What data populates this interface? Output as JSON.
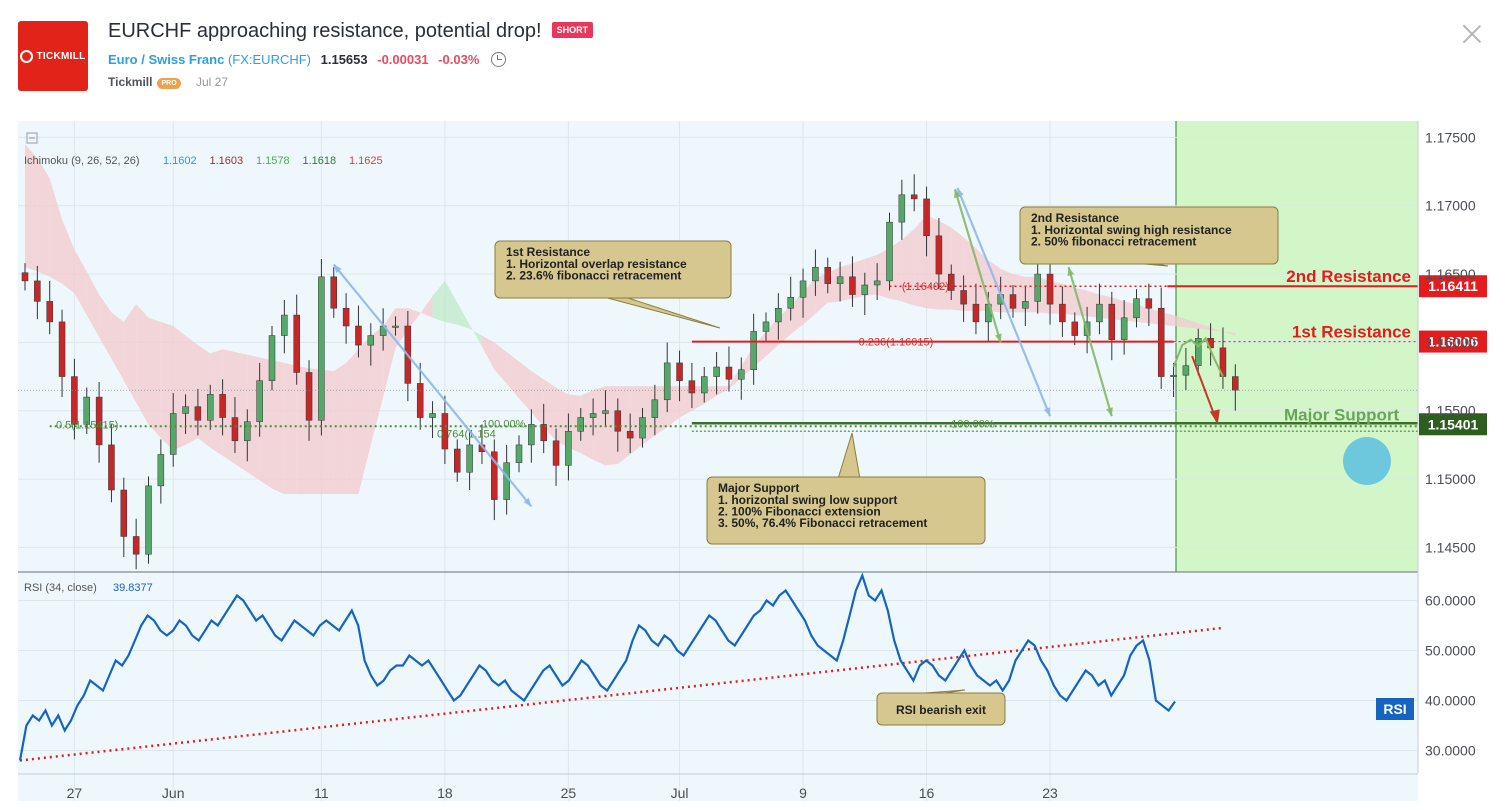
{
  "header": {
    "title": "EURCHF approaching resistance, potential drop!",
    "badge": "SHORT",
    "logo_text": "TICKMILL",
    "symbol_name": "Euro / Swiss Franc",
    "symbol_code": "(FX:EURCHF)",
    "price": "1.15653",
    "change": "-0.00031",
    "change_pct": "-0.03%",
    "author": "Tickmill",
    "author_badge": "PRO",
    "date": "Jul 27"
  },
  "colors": {
    "background": "#eef8fc",
    "candle_up": "#55a868",
    "candle_down": "#c62828",
    "resistance": "#e31d1d",
    "support": "#4f8b3b",
    "rsi_line": "#1565c0",
    "zone": "#c9f5b8",
    "callout": "#d6c78f"
  },
  "chart_data": [
    {
      "type": "candlestick",
      "title": "",
      "indicator_label": "Ichimoku (9, 26, 52, 26)",
      "indicator_values": [
        "1.1602",
        "1.1603",
        "1.1578",
        "1.1618",
        "1.1625"
      ],
      "indicator_colors": [
        "#2196f3",
        "#a52a2a",
        "#4caf50",
        "#2e7d32",
        "#e53935"
      ],
      "x_ticks": [
        {
          "i": 4,
          "label": "27"
        },
        {
          "i": 12,
          "label": "Jun"
        },
        {
          "i": 24,
          "label": "11"
        },
        {
          "i": 34,
          "label": "18"
        },
        {
          "i": 44,
          "label": "25"
        },
        {
          "i": 53,
          "label": "Jul"
        },
        {
          "i": 63,
          "label": "9"
        },
        {
          "i": 73,
          "label": "16"
        },
        {
          "i": 83,
          "label": "23"
        }
      ],
      "y_ticks": [
        1.145,
        1.15,
        1.155,
        1.16,
        1.165,
        1.17,
        1.175
      ],
      "y_tick_labels": [
        "1.14500",
        "1.15000",
        "1.15500",
        "1.16000",
        "1.16500",
        "1.17000",
        "1.17500"
      ],
      "ylim": [
        1.1432,
        1.1762
      ],
      "closes": [
        1.1645,
        1.163,
        1.1615,
        1.1575,
        1.154,
        1.156,
        1.1525,
        1.1492,
        1.1458,
        1.1445,
        1.1495,
        1.1518,
        1.1548,
        1.1553,
        1.1543,
        1.1562,
        1.1545,
        1.1528,
        1.1542,
        1.1572,
        1.1605,
        1.162,
        1.1578,
        1.1543,
        1.1648,
        1.1625,
        1.1612,
        1.1598,
        1.1605,
        1.1612,
        1.1612,
        1.157,
        1.1545,
        1.1548,
        1.1522,
        1.1505,
        1.1525,
        1.152,
        1.1485,
        1.1512,
        1.1525,
        1.154,
        1.1528,
        1.151,
        1.1535,
        1.1545,
        1.1548,
        1.155,
        1.1535,
        1.153,
        1.1545,
        1.1558,
        1.1585,
        1.1572,
        1.1563,
        1.1575,
        1.1582,
        1.1573,
        1.158,
        1.1608,
        1.1615,
        1.1625,
        1.1633,
        1.1645,
        1.1655,
        1.1643,
        1.1648,
        1.1635,
        1.1642,
        1.1645,
        1.1688,
        1.1708,
        1.1705,
        1.1678,
        1.165,
        1.1638,
        1.1628,
        1.1615,
        1.1628,
        1.1635,
        1.1625,
        1.163,
        1.165,
        1.1628,
        1.1615,
        1.1605,
        1.1615,
        1.1628,
        1.1602,
        1.1618,
        1.1632,
        1.1625,
        1.1575,
        1.1576,
        1.1583,
        1.1603,
        1.1596,
        1.1575,
        1.1565
      ],
      "cloud_upper": [
        1.1745,
        1.1735,
        1.172,
        1.169,
        1.1668,
        1.1652,
        1.1635,
        1.1622,
        1.1615,
        1.1628,
        1.1618,
        1.1615,
        1.1612,
        1.1605,
        1.1598,
        1.1592,
        1.1595,
        1.1593,
        1.1591,
        1.1589,
        1.1587,
        1.1585,
        1.1583,
        1.1581,
        1.158,
        1.1579,
        1.1585,
        1.1595,
        1.1605,
        1.1612,
        1.1625,
        1.1625,
        1.1622,
        1.1618,
        1.1615,
        1.1613,
        1.161,
        1.1605,
        1.16,
        1.1593,
        1.1586,
        1.1579,
        1.1573,
        1.1567,
        1.1562,
        1.1561,
        1.1565,
        1.1568,
        1.1568,
        1.1568,
        1.1568,
        1.1568,
        1.1568,
        1.1568,
        1.1568,
        1.1568,
        1.1568,
        1.1568,
        1.1583,
        1.1597,
        1.1608,
        1.1618,
        1.1627,
        1.1637,
        1.1647,
        1.1651,
        1.1655,
        1.1658,
        1.1661,
        1.1664,
        1.1669,
        1.1675,
        1.1683,
        1.1693,
        1.1689,
        1.1684,
        1.1677,
        1.1669,
        1.166,
        1.1654,
        1.165,
        1.1648,
        1.1648,
        1.1645,
        1.1643,
        1.164,
        1.1638,
        1.1635,
        1.1633,
        1.163,
        1.1628,
        1.1625,
        1.1622,
        1.162,
        1.1617,
        1.1614,
        1.1611,
        1.1608,
        1.1605
      ],
      "cloud_lower": [
        1.1655,
        1.1652,
        1.1648,
        1.1643,
        1.1636,
        1.162,
        1.1604,
        1.1588,
        1.1572,
        1.1556,
        1.154,
        1.153,
        1.1521,
        1.1525,
        1.153,
        1.1523,
        1.1517,
        1.1511,
        1.1505,
        1.1499,
        1.1493,
        1.1489,
        1.1489,
        1.1489,
        1.1489,
        1.1489,
        1.1489,
        1.1489,
        1.1525,
        1.156,
        1.1596,
        1.1609,
        1.1621,
        1.1634,
        1.1645,
        1.1629,
        1.1613,
        1.1597,
        1.158,
        1.157,
        1.1559,
        1.1549,
        1.1538,
        1.1528,
        1.1523,
        1.1519,
        1.1514,
        1.151,
        1.1511,
        1.1518,
        1.1525,
        1.1532,
        1.1538,
        1.1545,
        1.155,
        1.1555,
        1.1561,
        1.1566,
        1.1574,
        1.1582,
        1.159,
        1.1598,
        1.1606,
        1.1613,
        1.1621,
        1.1629,
        1.163,
        1.1632,
        1.1634,
        1.1635,
        1.1632,
        1.163,
        1.1627,
        1.1625,
        1.1624,
        1.1624,
        1.1623,
        1.1623,
        1.1623,
        1.1622,
        1.1622,
        1.1622,
        1.1622,
        1.1621,
        1.1621,
        1.162,
        1.1619,
        1.1618,
        1.1617,
        1.1616,
        1.1615,
        1.1614,
        1.1613,
        1.1612,
        1.1611,
        1.161,
        1.1609,
        1.1608,
        1.1607
      ],
      "levels": [
        {
          "name": "2nd Resistance",
          "value": 1.16411,
          "label": "1.16411",
          "color": "#e31d1d"
        },
        {
          "name": "1st Resistance",
          "value": 1.16006,
          "label": "1.16006",
          "color": "#e31d1d"
        },
        {
          "name": "Major Support",
          "value": 1.15401,
          "label": "1.15401",
          "color": "#3d7a2a"
        }
      ],
      "fib_labels": [
        "(1.16402)",
        "0.236(1.16015)",
        "100.00%",
        "0.5(1.15415)",
        "0.764(1.154",
        "100.00%"
      ],
      "annotations": [
        {
          "title": "1st Resistance",
          "lines": [
            "1. Horizontal overlap resistance",
            "2. 23.6% fibonacci retracement"
          ]
        },
        {
          "title": "2nd Resistance",
          "lines": [
            "1. Horizontal swing high resistance",
            "2. 50% fibonacci retracement"
          ]
        },
        {
          "title": "Major Support",
          "lines": [
            "1. horizontal swing low support",
            "2. 100% Fibonacci extension",
            "3. 50%, 76.4% Fibonacci retracement"
          ]
        }
      ]
    },
    {
      "type": "line",
      "title": "",
      "indicator_label": "RSI (34, close)",
      "value_label": "39.8377",
      "badge": "RSI",
      "y_ticks": [
        30,
        40,
        50,
        60
      ],
      "y_tick_labels": [
        "30.0000",
        "40.0000",
        "50.0000",
        "60.0000"
      ],
      "ylim": [
        25.5,
        65.5
      ],
      "values": [
        28,
        35,
        37,
        36,
        38,
        35,
        37,
        34,
        36,
        39,
        41,
        44,
        43,
        42,
        45,
        48,
        47,
        49,
        52,
        55,
        57,
        56,
        54,
        53,
        54,
        56,
        55,
        53,
        52,
        54,
        56,
        55,
        57,
        59,
        61,
        60,
        58,
        56,
        57,
        55,
        53,
        52,
        54,
        56,
        55,
        54,
        53,
        55,
        56,
        55,
        54,
        56,
        58,
        55,
        48,
        45,
        43,
        44,
        46,
        47,
        47,
        49,
        48,
        47,
        48,
        46,
        44,
        42,
        40,
        41,
        43,
        45,
        47,
        46,
        44,
        43,
        44,
        42,
        41,
        40,
        42,
        44,
        46,
        47,
        45,
        43,
        44,
        46,
        48,
        47,
        45,
        43,
        42,
        44,
        46,
        48,
        52,
        55,
        54,
        52,
        51,
        53,
        52,
        50,
        49,
        51,
        53,
        55,
        57,
        56,
        54,
        52,
        51,
        53,
        55,
        57,
        58,
        60,
        59,
        61,
        62,
        60,
        58,
        56,
        53,
        51,
        50,
        49,
        48,
        52,
        57,
        62,
        65,
        61,
        60,
        62,
        58,
        52,
        48,
        46,
        44,
        47,
        48,
        47,
        45,
        44,
        46,
        48,
        50,
        47,
        45,
        44,
        43,
        44,
        42,
        44,
        48,
        50,
        52,
        51,
        48,
        46,
        43,
        41,
        40,
        42,
        44,
        46,
        45,
        43,
        44,
        41,
        43,
        45,
        49,
        51,
        52,
        48,
        40,
        39,
        38,
        39.8
      ],
      "trend_start": 28,
      "trend_end": 54.5,
      "annotations": [
        {
          "text": "RSI bearish exit"
        }
      ]
    }
  ]
}
